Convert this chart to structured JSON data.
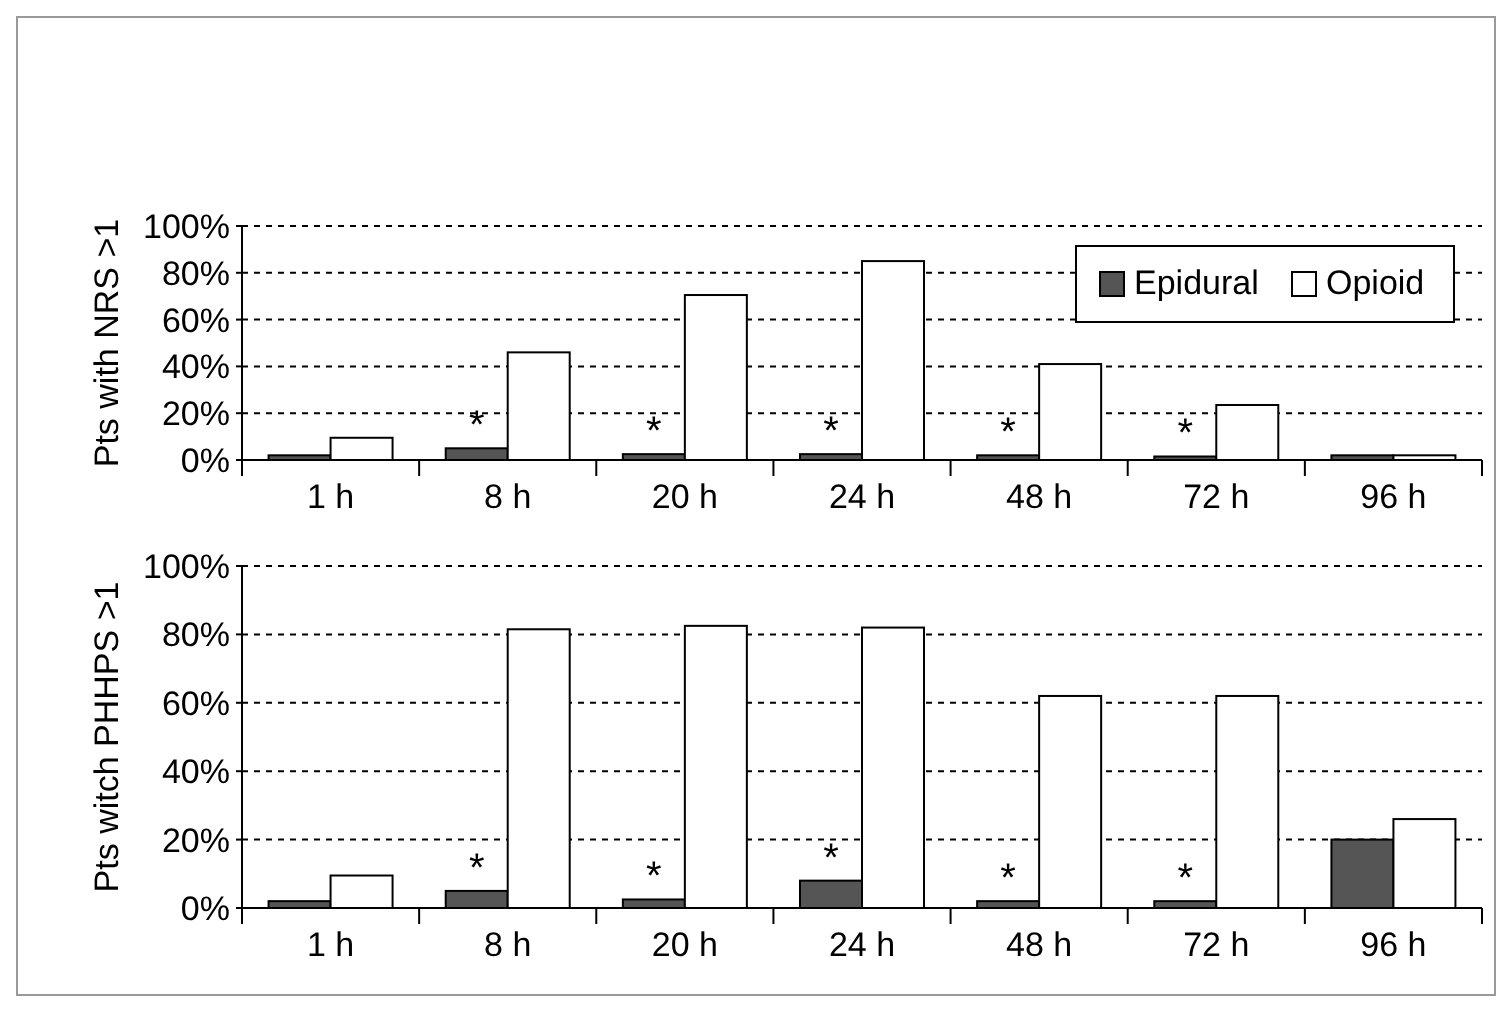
{
  "chart_data": [
    {
      "type": "bar",
      "ylabel": "Pts with NRS >1",
      "categories": [
        "1 h",
        "8 h",
        "20 h",
        "24 h",
        "48 h",
        "72 h",
        "96 h"
      ],
      "series": [
        {
          "name": "Epidural",
          "color": "#555555",
          "values": [
            2,
            5,
            2.5,
            2.5,
            2,
            1.5,
            2
          ]
        },
        {
          "name": "Opioid",
          "color": "#ffffff",
          "values": [
            9.5,
            46,
            70.5,
            85,
            41,
            23.5,
            2
          ]
        }
      ],
      "ylim": [
        0,
        100
      ],
      "yticks": [
        {
          "value": 0,
          "label": "0%"
        },
        {
          "value": 20,
          "label": "20%"
        },
        {
          "value": 40,
          "label": "40%"
        },
        {
          "value": 60,
          "label": "60%"
        },
        {
          "value": 80,
          "label": "80%"
        },
        {
          "value": 100,
          "label": "100%"
        }
      ],
      "grid": "y",
      "legend": "top right",
      "annotations": [
        {
          "text": "*",
          "x": "8 h",
          "y": 5
        },
        {
          "text": "*",
          "x": "20 h",
          "y": 2.5
        },
        {
          "text": "*",
          "x": "24 h",
          "y": 2.5
        },
        {
          "text": "*",
          "x": "48 h",
          "y": 2
        },
        {
          "text": "*",
          "x": "72 h",
          "y": 1.5
        }
      ]
    },
    {
      "type": "bar",
      "ylabel": "Pts witch PHHPS >1",
      "categories": [
        "1 h",
        "8 h",
        "20 h",
        "24 h",
        "48 h",
        "72 h",
        "96 h"
      ],
      "series": [
        {
          "color": "#555555",
          "values": [
            2,
            5,
            2.5,
            8,
            2,
            2,
            20
          ]
        },
        {
          "color": "#ffffff",
          "values": [
            9.5,
            81.5,
            82.5,
            82,
            62,
            62,
            26
          ]
        }
      ],
      "ylim": [
        0,
        100
      ],
      "yticks": [
        {
          "value": 0,
          "label": "0%"
        },
        {
          "value": 20,
          "label": "20%"
        },
        {
          "value": 40,
          "label": "40%"
        },
        {
          "value": 60,
          "label": "60%"
        },
        {
          "value": 80,
          "label": "80%"
        },
        {
          "value": 100,
          "label": "100%"
        }
      ],
      "grid": "y",
      "annotations": [
        {
          "text": "*",
          "x": "8 h",
          "y": 5
        },
        {
          "text": "*",
          "x": "20 h",
          "y": 2.5
        },
        {
          "text": "*",
          "x": "24 h",
          "y": 8
        },
        {
          "text": "*",
          "x": "48 h",
          "y": 2
        },
        {
          "text": "*",
          "x": "72 h",
          "y": 2
        }
      ]
    }
  ]
}
